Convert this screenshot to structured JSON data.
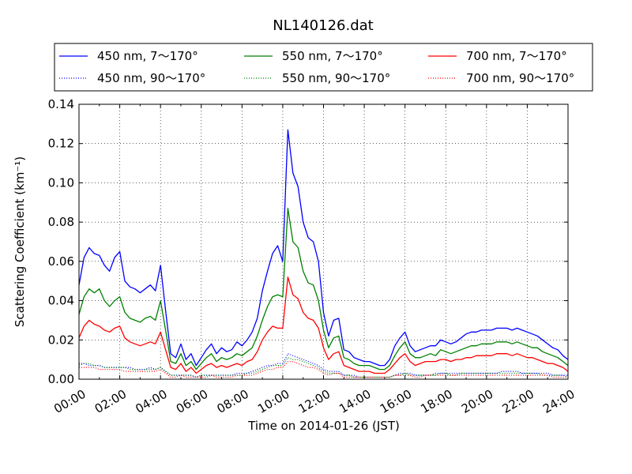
{
  "chart_data": {
    "type": "line",
    "title": "NL140126.dat",
    "xlabel": "Time on 2014-01-26 (JST)",
    "ylabel": "Scattering Coefficient (km⁻¹)",
    "xlim": [
      0,
      24
    ],
    "ylim": [
      0.0,
      0.14
    ],
    "x_ticks": [
      "00:00",
      "02:00",
      "04:00",
      "06:00",
      "08:00",
      "10:00",
      "12:00",
      "14:00",
      "16:00",
      "18:00",
      "20:00",
      "22:00",
      "24:00"
    ],
    "y_ticks": [
      "0.00",
      "0.02",
      "0.04",
      "0.06",
      "0.08",
      "0.10",
      "0.12",
      "0.14"
    ],
    "grid": true,
    "legend_position": "top",
    "x": [
      0,
      0.25,
      0.5,
      0.75,
      1,
      1.25,
      1.5,
      1.75,
      2,
      2.25,
      2.5,
      2.75,
      3,
      3.25,
      3.5,
      3.75,
      4,
      4.25,
      4.5,
      4.75,
      5,
      5.25,
      5.5,
      5.75,
      6,
      6.25,
      6.5,
      6.75,
      7,
      7.25,
      7.5,
      7.75,
      8,
      8.25,
      8.5,
      8.75,
      9,
      9.25,
      9.5,
      9.75,
      10,
      10.25,
      10.5,
      10.75,
      11,
      11.25,
      11.5,
      11.75,
      12,
      12.25,
      12.5,
      12.75,
      13,
      13.25,
      13.5,
      13.75,
      14,
      14.25,
      14.5,
      14.75,
      15,
      15.25,
      15.5,
      15.75,
      16,
      16.25,
      16.5,
      16.75,
      17,
      17.25,
      17.5,
      17.75,
      18,
      18.25,
      18.5,
      18.75,
      19,
      19.25,
      19.5,
      19.75,
      20,
      20.25,
      20.5,
      20.75,
      21,
      21.25,
      21.5,
      21.75,
      22,
      22.25,
      22.5,
      22.75,
      23,
      23.25,
      23.5,
      23.75,
      24
    ],
    "series": [
      {
        "name": "450 nm, 7～170°",
        "color": "#0000ff",
        "style": "solid",
        "values": [
          0.048,
          0.062,
          0.067,
          0.064,
          0.063,
          0.058,
          0.055,
          0.062,
          0.065,
          0.05,
          0.047,
          0.046,
          0.044,
          0.046,
          0.048,
          0.045,
          0.058,
          0.035,
          0.013,
          0.011,
          0.018,
          0.01,
          0.013,
          0.007,
          0.011,
          0.015,
          0.018,
          0.013,
          0.016,
          0.014,
          0.015,
          0.019,
          0.017,
          0.02,
          0.024,
          0.031,
          0.045,
          0.055,
          0.064,
          0.068,
          0.06,
          0.127,
          0.105,
          0.098,
          0.08,
          0.072,
          0.07,
          0.06,
          0.034,
          0.022,
          0.03,
          0.031,
          0.015,
          0.014,
          0.011,
          0.01,
          0.009,
          0.009,
          0.008,
          0.007,
          0.007,
          0.01,
          0.017,
          0.021,
          0.024,
          0.017,
          0.014,
          0.015,
          0.016,
          0.017,
          0.017,
          0.02,
          0.019,
          0.018,
          0.019,
          0.021,
          0.023,
          0.024,
          0.024,
          0.025,
          0.025,
          0.025,
          0.026,
          0.026,
          0.026,
          0.025,
          0.026,
          0.025,
          0.024,
          0.023,
          0.022,
          0.02,
          0.018,
          0.016,
          0.015,
          0.012,
          0.01
        ]
      },
      {
        "name": "450 nm, 90～170°",
        "color": "#0000ff",
        "style": "dotted",
        "values": [
          0.008,
          0.008,
          0.007,
          0.007,
          0.007,
          0.006,
          0.006,
          0.006,
          0.006,
          0.006,
          0.006,
          0.005,
          0.005,
          0.005,
          0.006,
          0.005,
          0.006,
          0.004,
          0.002,
          0.002,
          0.002,
          0.002,
          0.002,
          0.001,
          0.002,
          0.002,
          0.002,
          0.002,
          0.002,
          0.002,
          0.002,
          0.003,
          0.003,
          0.003,
          0.004,
          0.005,
          0.006,
          0.007,
          0.007,
          0.008,
          0.008,
          0.013,
          0.012,
          0.011,
          0.01,
          0.009,
          0.008,
          0.007,
          0.005,
          0.004,
          0.004,
          0.004,
          0.002,
          0.002,
          0.002,
          0.001,
          0.001,
          0.001,
          0.001,
          0.001,
          0.001,
          0.001,
          0.002,
          0.003,
          0.003,
          0.003,
          0.002,
          0.002,
          0.002,
          0.002,
          0.003,
          0.003,
          0.003,
          0.003,
          0.003,
          0.003,
          0.003,
          0.003,
          0.003,
          0.003,
          0.003,
          0.003,
          0.003,
          0.004,
          0.004,
          0.004,
          0.004,
          0.003,
          0.003,
          0.003,
          0.003,
          0.003,
          0.003,
          0.002,
          0.002,
          0.002,
          0.002
        ]
      },
      {
        "name": "550 nm, 7～170°",
        "color": "#008000",
        "style": "solid",
        "values": [
          0.033,
          0.042,
          0.046,
          0.044,
          0.046,
          0.04,
          0.037,
          0.04,
          0.042,
          0.034,
          0.031,
          0.03,
          0.029,
          0.031,
          0.032,
          0.03,
          0.04,
          0.025,
          0.009,
          0.008,
          0.013,
          0.007,
          0.009,
          0.005,
          0.008,
          0.011,
          0.013,
          0.009,
          0.011,
          0.01,
          0.011,
          0.013,
          0.012,
          0.014,
          0.016,
          0.022,
          0.03,
          0.037,
          0.042,
          0.043,
          0.042,
          0.087,
          0.07,
          0.067,
          0.055,
          0.049,
          0.048,
          0.04,
          0.025,
          0.016,
          0.021,
          0.022,
          0.011,
          0.01,
          0.008,
          0.007,
          0.007,
          0.007,
          0.006,
          0.005,
          0.005,
          0.007,
          0.012,
          0.016,
          0.019,
          0.013,
          0.011,
          0.011,
          0.012,
          0.013,
          0.012,
          0.015,
          0.014,
          0.013,
          0.014,
          0.015,
          0.016,
          0.017,
          0.017,
          0.018,
          0.018,
          0.018,
          0.019,
          0.019,
          0.019,
          0.018,
          0.019,
          0.018,
          0.017,
          0.016,
          0.016,
          0.014,
          0.013,
          0.012,
          0.011,
          0.009,
          0.007
        ]
      },
      {
        "name": "550 nm, 90～170°",
        "color": "#008000",
        "style": "dotted",
        "values": [
          0.007,
          0.008,
          0.008,
          0.007,
          0.007,
          0.006,
          0.006,
          0.006,
          0.006,
          0.006,
          0.005,
          0.005,
          0.005,
          0.005,
          0.005,
          0.005,
          0.006,
          0.004,
          0.002,
          0.002,
          0.002,
          0.002,
          0.002,
          0.001,
          0.002,
          0.002,
          0.002,
          0.002,
          0.002,
          0.002,
          0.002,
          0.002,
          0.002,
          0.003,
          0.003,
          0.004,
          0.005,
          0.006,
          0.007,
          0.007,
          0.007,
          0.011,
          0.01,
          0.01,
          0.009,
          0.008,
          0.007,
          0.006,
          0.004,
          0.003,
          0.003,
          0.003,
          0.002,
          0.002,
          0.001,
          0.001,
          0.001,
          0.001,
          0.001,
          0.001,
          0.001,
          0.001,
          0.002,
          0.002,
          0.003,
          0.002,
          0.002,
          0.002,
          0.002,
          0.002,
          0.002,
          0.003,
          0.003,
          0.002,
          0.002,
          0.003,
          0.003,
          0.003,
          0.003,
          0.003,
          0.003,
          0.003,
          0.003,
          0.003,
          0.003,
          0.003,
          0.003,
          0.003,
          0.003,
          0.003,
          0.003,
          0.002,
          0.002,
          0.002,
          0.002,
          0.002,
          0.001
        ]
      },
      {
        "name": "700 nm, 7～170°",
        "color": "#ff0000",
        "style": "solid",
        "values": [
          0.021,
          0.027,
          0.03,
          0.028,
          0.027,
          0.025,
          0.024,
          0.026,
          0.027,
          0.021,
          0.019,
          0.018,
          0.017,
          0.018,
          0.019,
          0.018,
          0.024,
          0.015,
          0.006,
          0.005,
          0.008,
          0.004,
          0.006,
          0.003,
          0.005,
          0.007,
          0.008,
          0.006,
          0.007,
          0.006,
          0.007,
          0.008,
          0.007,
          0.009,
          0.01,
          0.014,
          0.02,
          0.024,
          0.027,
          0.026,
          0.026,
          0.052,
          0.043,
          0.041,
          0.034,
          0.031,
          0.03,
          0.026,
          0.016,
          0.01,
          0.013,
          0.014,
          0.007,
          0.006,
          0.005,
          0.004,
          0.004,
          0.004,
          0.003,
          0.003,
          0.003,
          0.005,
          0.008,
          0.011,
          0.013,
          0.009,
          0.007,
          0.008,
          0.009,
          0.009,
          0.009,
          0.01,
          0.01,
          0.009,
          0.01,
          0.01,
          0.011,
          0.011,
          0.012,
          0.012,
          0.012,
          0.012,
          0.013,
          0.013,
          0.013,
          0.012,
          0.013,
          0.012,
          0.011,
          0.011,
          0.01,
          0.009,
          0.008,
          0.008,
          0.007,
          0.006,
          0.004
        ]
      },
      {
        "name": "700 nm, 90～170°",
        "color": "#ff0000",
        "style": "dotted",
        "values": [
          0.006,
          0.006,
          0.006,
          0.006,
          0.005,
          0.005,
          0.005,
          0.005,
          0.005,
          0.004,
          0.004,
          0.004,
          0.004,
          0.004,
          0.004,
          0.004,
          0.005,
          0.003,
          0.001,
          0.001,
          0.002,
          0.001,
          0.001,
          0.001,
          0.001,
          0.001,
          0.002,
          0.001,
          0.001,
          0.001,
          0.001,
          0.002,
          0.002,
          0.002,
          0.002,
          0.003,
          0.004,
          0.005,
          0.005,
          0.006,
          0.006,
          0.009,
          0.009,
          0.008,
          0.007,
          0.006,
          0.006,
          0.005,
          0.003,
          0.002,
          0.003,
          0.003,
          0.001,
          0.001,
          0.001,
          0.001,
          0.001,
          0.001,
          0.001,
          0.001,
          0.001,
          0.001,
          0.002,
          0.002,
          0.002,
          0.002,
          0.001,
          0.001,
          0.002,
          0.002,
          0.002,
          0.002,
          0.002,
          0.002,
          0.002,
          0.002,
          0.002,
          0.002,
          0.002,
          0.002,
          0.002,
          0.002,
          0.002,
          0.002,
          0.002,
          0.002,
          0.002,
          0.002,
          0.002,
          0.002,
          0.002,
          0.002,
          0.002,
          0.001,
          0.001,
          0.001,
          0.001
        ]
      }
    ]
  }
}
